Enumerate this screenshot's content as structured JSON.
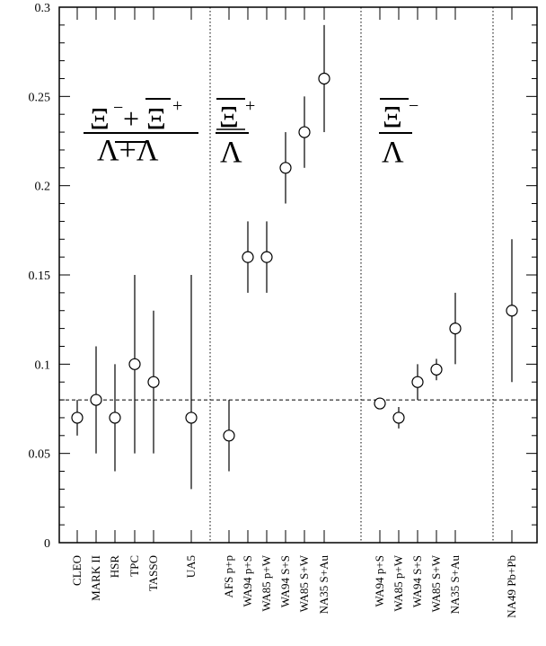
{
  "chart_data": {
    "type": "scatter",
    "ylim": [
      0,
      0.3
    ],
    "yticks": [
      "0",
      "0.05",
      "0.1",
      "0.15",
      "0.2",
      "0.25",
      "0.3"
    ],
    "reference_line": 0.08,
    "groups": [
      {
        "formula": {
          "num_a": "Ξ",
          "num_a_sup": "−",
          "num_plus": "+",
          "num_b": "Ξ",
          "num_b_sup": "+",
          "den": "Λ+Λ"
        },
        "points": [
          {
            "label": "CLEO",
            "value": 0.07,
            "err_low": 0.06,
            "err_high": 0.08
          },
          {
            "label": "MARK II",
            "value": 0.08,
            "err_low": 0.05,
            "err_high": 0.11
          },
          {
            "label": "HSR",
            "value": 0.07,
            "err_low": 0.04,
            "err_high": 0.1
          },
          {
            "label": "TPC",
            "value": 0.1,
            "err_low": 0.05,
            "err_high": 0.15
          },
          {
            "label": "TASSO",
            "value": 0.09,
            "err_low": 0.05,
            "err_high": 0.13
          },
          {
            "label": "UA5",
            "value": 0.07,
            "err_low": 0.03,
            "err_high": 0.15
          }
        ]
      },
      {
        "formula": {
          "num": "Ξ",
          "num_sup": "+",
          "den": "Λ"
        },
        "points": [
          {
            "label": "AFS p+p",
            "value": 0.06,
            "err_low": 0.04,
            "err_high": 0.08
          },
          {
            "label": "WA94 p+S",
            "value": 0.16,
            "err_low": 0.14,
            "err_high": 0.18
          },
          {
            "label": "WA85 p+W",
            "value": 0.16,
            "err_low": 0.14,
            "err_high": 0.18
          },
          {
            "label": "WA94 S+S",
            "value": 0.21,
            "err_low": 0.19,
            "err_high": 0.23
          },
          {
            "label": "WA85 S+W",
            "value": 0.23,
            "err_low": 0.21,
            "err_high": 0.25
          },
          {
            "label": "NA35 S+Au",
            "value": 0.26,
            "err_low": 0.23,
            "err_high": 0.29
          }
        ]
      },
      {
        "formula": {
          "num": "Ξ",
          "num_sup": "−",
          "den": "Λ"
        },
        "points": [
          {
            "label": "WA94 p+S",
            "value": 0.078,
            "err_low": 0.075,
            "err_high": 0.081
          },
          {
            "label": "WA85 p+W",
            "value": 0.07,
            "err_low": 0.064,
            "err_high": 0.076
          },
          {
            "label": "WA94 S+S",
            "value": 0.09,
            "err_low": 0.08,
            "err_high": 0.1
          },
          {
            "label": "WA85 S+W",
            "value": 0.097,
            "err_low": 0.091,
            "err_high": 0.103
          },
          {
            "label": "NA35 S+Au",
            "value": 0.12,
            "err_low": 0.1,
            "err_high": 0.14
          }
        ]
      },
      {
        "formula": null,
        "points": [
          {
            "label": "NA49 Pb+Pb",
            "value": 0.13,
            "err_low": 0.09,
            "err_high": 0.17
          }
        ]
      }
    ]
  }
}
